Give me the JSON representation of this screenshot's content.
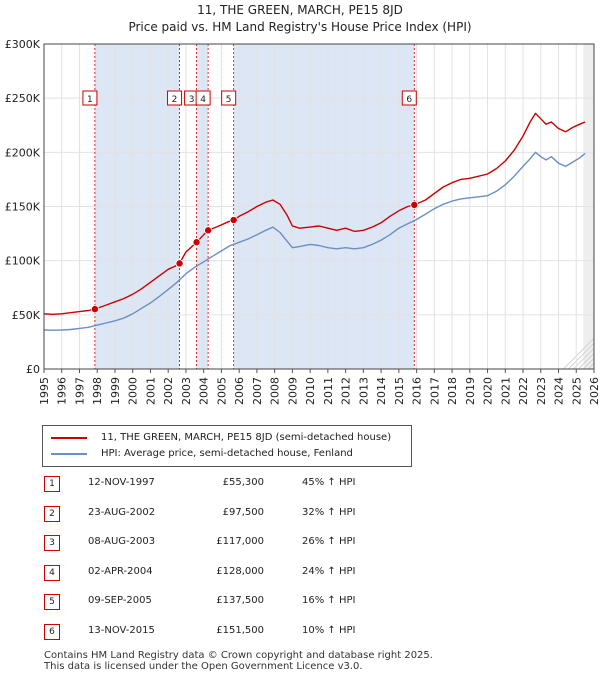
{
  "chart_data": {
    "type": "line",
    "title": "11, THE GREEN, MARCH, PE15 8JD",
    "subtitle": "Price paid vs. HM Land Registry's House Price Index (HPI)",
    "xlim": [
      1995,
      2026
    ],
    "ylim": [
      0,
      300000
    ],
    "x_ticks": [
      1995,
      1996,
      1997,
      1998,
      1999,
      2000,
      2001,
      2002,
      2003,
      2004,
      2005,
      2006,
      2007,
      2008,
      2009,
      2010,
      2011,
      2012,
      2013,
      2014,
      2015,
      2016,
      2017,
      2018,
      2019,
      2020,
      2021,
      2022,
      2023,
      2024,
      2025,
      2026
    ],
    "y_ticks": [
      {
        "value": 0,
        "label": "£0"
      },
      {
        "value": 50000,
        "label": "£50K"
      },
      {
        "value": 100000,
        "label": "£100K"
      },
      {
        "value": 150000,
        "label": "£150K"
      },
      {
        "value": 200000,
        "label": "£200K"
      },
      {
        "value": 250000,
        "label": "£250K"
      },
      {
        "value": 300000,
        "label": "£300K"
      }
    ],
    "series": [
      {
        "name": "11, THE GREEN, MARCH, PE15 8JD (semi-detached house)",
        "color": "#cc0000",
        "x": [
          1995.0,
          1995.5,
          1996.0,
          1996.5,
          1997.0,
          1997.5,
          1997.87,
          1998.5,
          1999.0,
          1999.5,
          2000.0,
          2000.5,
          2001.0,
          2001.5,
          2002.0,
          2002.4,
          2002.64,
          2003.0,
          2003.6,
          2004.0,
          2004.25,
          2004.7,
          2005.0,
          2005.4,
          2005.69,
          2006.0,
          2006.5,
          2007.0,
          2007.5,
          2007.9,
          2008.3,
          2008.7,
          2009.0,
          2009.4,
          2010.0,
          2010.5,
          2011.0,
          2011.5,
          2012.0,
          2012.5,
          2013.0,
          2013.5,
          2014.0,
          2014.5,
          2015.0,
          2015.5,
          2015.87,
          2016.5,
          2017.0,
          2017.5,
          2018.0,
          2018.5,
          2019.0,
          2019.5,
          2020.0,
          2020.5,
          2021.0,
          2021.5,
          2022.0,
          2022.4,
          2022.7,
          2023.0,
          2023.3,
          2023.6,
          2024.0,
          2024.4,
          2024.8,
          2025.2,
          2025.5
        ],
        "values": [
          51000,
          50500,
          51000,
          52000,
          53000,
          54000,
          55300,
          59000,
          62000,
          65000,
          69000,
          74000,
          80000,
          86000,
          92000,
          95000,
          97500,
          108000,
          117000,
          124000,
          128000,
          131000,
          133000,
          136000,
          137500,
          141000,
          145000,
          150000,
          154000,
          156000,
          152000,
          142000,
          132000,
          130000,
          131000,
          132000,
          130000,
          128000,
          130000,
          127000,
          128000,
          131000,
          135000,
          141000,
          146000,
          150000,
          151500,
          156000,
          162000,
          168000,
          172000,
          175000,
          176000,
          178000,
          180000,
          185000,
          192000,
          202000,
          215000,
          228000,
          236000,
          231000,
          226000,
          228000,
          222000,
          219000,
          223000,
          226000,
          228000
        ]
      },
      {
        "name": "HPI: Average price, semi-detached house, Fenland",
        "color": "#6a8fc4",
        "x": [
          1995.0,
          1995.5,
          1996.0,
          1996.5,
          1997.0,
          1997.5,
          1998.0,
          1998.5,
          1999.0,
          1999.5,
          2000.0,
          2000.5,
          2001.0,
          2001.5,
          2002.0,
          2002.5,
          2003.0,
          2003.5,
          2004.0,
          2004.5,
          2005.0,
          2005.5,
          2006.0,
          2006.5,
          2007.0,
          2007.5,
          2007.9,
          2008.3,
          2008.7,
          2009.0,
          2009.4,
          2010.0,
          2010.5,
          2011.0,
          2011.5,
          2012.0,
          2012.5,
          2013.0,
          2013.5,
          2014.0,
          2014.5,
          2015.0,
          2015.5,
          2016.0,
          2016.5,
          2017.0,
          2017.5,
          2018.0,
          2018.5,
          2019.0,
          2019.5,
          2020.0,
          2020.5,
          2021.0,
          2021.5,
          2022.0,
          2022.4,
          2022.7,
          2023.0,
          2023.3,
          2023.6,
          2024.0,
          2024.4,
          2024.8,
          2025.2,
          2025.5
        ],
        "values": [
          36000,
          35800,
          36000,
          36500,
          37500,
          38500,
          40500,
          42500,
          44500,
          47000,
          51000,
          56000,
          61000,
          67000,
          73500,
          80000,
          88000,
          94000,
          99000,
          104000,
          109000,
          114000,
          117000,
          120000,
          124000,
          128000,
          131000,
          126000,
          118000,
          112000,
          113000,
          115000,
          114000,
          112000,
          111000,
          112000,
          111000,
          112000,
          115000,
          119000,
          124000,
          130000,
          134000,
          138000,
          143000,
          148000,
          152000,
          155000,
          157000,
          158000,
          159000,
          160000,
          164000,
          170000,
          178000,
          187000,
          194000,
          200000,
          196000,
          193000,
          196000,
          190000,
          187000,
          191000,
          195000,
          199000
        ]
      }
    ],
    "sales": [
      {
        "num": "1",
        "x": 1997.87,
        "value": 55300,
        "date": "12-NOV-1997",
        "price": "£55,300",
        "hpi": "45% ↑ HPI"
      },
      {
        "num": "2",
        "x": 2002.64,
        "value": 97500,
        "date": "23-AUG-2002",
        "price": "£97,500",
        "hpi": "32% ↑ HPI"
      },
      {
        "num": "3",
        "x": 2003.6,
        "value": 117000,
        "date": "08-AUG-2003",
        "price": "£117,000",
        "hpi": "26% ↑ HPI"
      },
      {
        "num": "4",
        "x": 2004.25,
        "value": 128000,
        "date": "02-APR-2004",
        "price": "£128,000",
        "hpi": "24% ↑ HPI"
      },
      {
        "num": "5",
        "x": 2005.69,
        "value": 137500,
        "date": "09-SEP-2005",
        "price": "£137,500",
        "hpi": "16% ↑ HPI"
      },
      {
        "num": "6",
        "x": 2015.87,
        "value": 151500,
        "date": "13-NOV-2015",
        "price": "£151,500",
        "hpi": "10% ↑ HPI"
      }
    ],
    "shaded_ranges": [
      [
        1997.87,
        2002.64
      ],
      [
        2003.6,
        2004.25
      ],
      [
        2005.69,
        2015.87
      ]
    ],
    "projection_start": 2025.4
  },
  "legend": {
    "property_label": "11, THE GREEN, MARCH, PE15 8JD (semi-detached house)",
    "hpi_label": "HPI: Average price, semi-detached house, Fenland"
  },
  "footer": {
    "line1": "Contains HM Land Registry data © Crown copyright and database right 2025.",
    "line2": "This data is licensed under the Open Government Licence v3.0."
  }
}
